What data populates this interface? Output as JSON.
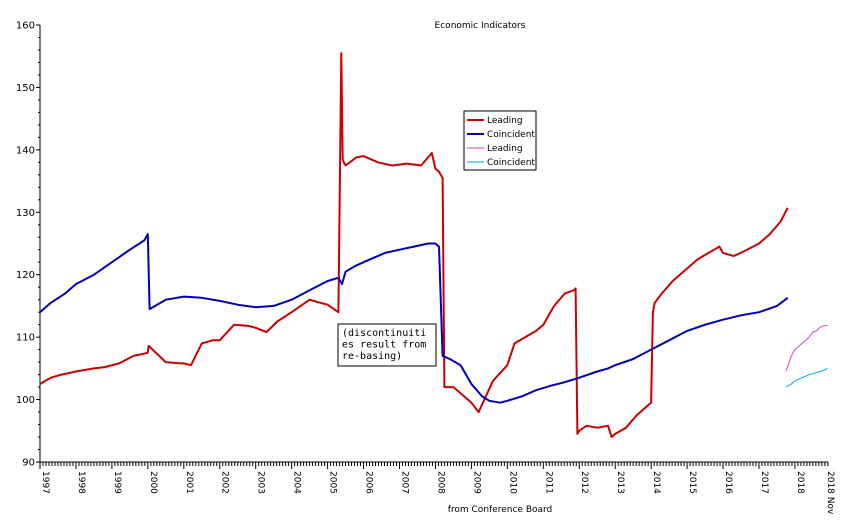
{
  "chart_data": {
    "type": "line",
    "title": "Economic Indicators",
    "xlabel": "from Conference Board",
    "ylabel": "",
    "xlim": [
      1997.0,
      2018.92
    ],
    "ylim": [
      90,
      160
    ],
    "yticks": [
      90,
      100,
      110,
      120,
      130,
      140,
      150,
      160
    ],
    "xticks": [
      "1997",
      "1998",
      "1999",
      "2000",
      "2001",
      "2002",
      "2003",
      "2004",
      "2005",
      "2006",
      "2007",
      "2008",
      "2009",
      "2010",
      "2011",
      "2012",
      "2013",
      "2014",
      "2015",
      "2016",
      "2017",
      "2018",
      "2018 Nov"
    ],
    "annotation": [
      "(discontinuiti",
      "es result from",
      "re-basing)"
    ],
    "legend": {
      "placement": "center-right",
      "entries": [
        "Leading",
        "Coincident",
        "Leading",
        "Coincident"
      ]
    },
    "series": [
      {
        "name": "Leading",
        "color": "#cc0000",
        "x": [
          1997.0,
          1997.3,
          1997.6,
          1998.0,
          1998.5,
          1998.8,
          1999.2,
          1999.6,
          2000.0,
          2000.02,
          2000.5,
          2000.9,
          2001.0,
          2001.2,
          2001.5,
          2001.8,
          2002.0,
          2002.4,
          2002.8,
          2003.0,
          2003.3,
          2003.6,
          2004.0,
          2004.5,
          2004.8,
          2005.0,
          2005.3,
          2005.38,
          2005.42,
          2005.45,
          2005.5,
          2005.8,
          2006.0,
          2006.4,
          2006.8,
          2007.2,
          2007.6,
          2007.9,
          2008.0,
          2008.1,
          2008.2,
          2008.25,
          2008.3,
          2008.5,
          2008.8,
          2009.0,
          2009.2,
          2009.4,
          2009.6,
          2010.0,
          2010.2,
          2010.5,
          2010.8,
          2011.0,
          2011.3,
          2011.6,
          2011.85,
          2011.9,
          2011.95,
          2012.0,
          2012.2,
          2012.5,
          2012.8,
          2012.9,
          2013.0,
          2013.3,
          2013.6,
          2013.9,
          2014.0,
          2014.05,
          2014.1,
          2014.3,
          2014.6,
          2015.0,
          2015.3,
          2015.6,
          2015.9,
          2016.0,
          2016.3,
          2016.6,
          2017.0,
          2017.3,
          2017.6,
          2017.8
        ],
        "y": [
          102.5,
          103.5,
          104.0,
          104.5,
          105.0,
          105.2,
          105.8,
          107.0,
          107.5,
          108.6,
          106.0,
          105.8,
          105.8,
          105.5,
          109.0,
          109.5,
          109.5,
          112.0,
          111.8,
          111.5,
          110.8,
          112.5,
          114.0,
          116.0,
          115.5,
          115.2,
          114.0,
          155.5,
          138.5,
          138.0,
          137.5,
          138.8,
          139.0,
          138.0,
          137.5,
          137.8,
          137.5,
          139.5,
          137.0,
          136.5,
          135.5,
          102.0,
          102.0,
          102.0,
          100.5,
          99.5,
          98.0,
          100.5,
          103.0,
          105.5,
          109.0,
          110.0,
          111.0,
          112.0,
          115.0,
          117.0,
          117.5,
          117.8,
          94.5,
          95.0,
          95.8,
          95.5,
          95.8,
          94.0,
          94.5,
          95.5,
          97.5,
          99.0,
          99.5,
          114.0,
          115.5,
          117.0,
          119.0,
          121.0,
          122.5,
          123.5,
          124.5,
          123.5,
          123.0,
          123.8,
          125.0,
          126.5,
          128.5,
          130.7
        ]
      },
      {
        "name": "Coincident",
        "color": "#0000bb",
        "x": [
          1997.0,
          1997.3,
          1997.7,
          1998.0,
          1998.5,
          1999.0,
          1999.5,
          1999.9,
          2000.0,
          2000.05,
          2000.5,
          2001.0,
          2001.5,
          2002.0,
          2002.5,
          2003.0,
          2003.5,
          2004.0,
          2004.5,
          2005.0,
          2005.3,
          2005.4,
          2005.5,
          2005.8,
          2006.2,
          2006.6,
          2007.0,
          2007.4,
          2007.8,
          2008.0,
          2008.1,
          2008.2,
          2008.4,
          2008.7,
          2009.0,
          2009.3,
          2009.5,
          2009.8,
          2010.0,
          2010.4,
          2010.8,
          2011.2,
          2011.6,
          2012.0,
          2012.5,
          2012.8,
          2013.0,
          2013.5,
          2014.0,
          2014.5,
          2015.0,
          2015.5,
          2016.0,
          2016.5,
          2017.0,
          2017.5,
          2017.8
        ],
        "y": [
          114.0,
          115.5,
          117.0,
          118.5,
          120.0,
          122.0,
          124.0,
          125.5,
          126.5,
          114.5,
          116.0,
          116.5,
          116.3,
          115.8,
          115.2,
          114.8,
          115.0,
          116.0,
          117.5,
          119.0,
          119.5,
          118.5,
          120.5,
          121.5,
          122.5,
          123.5,
          124.0,
          124.5,
          125.0,
          125.0,
          124.5,
          107.0,
          106.5,
          105.5,
          102.5,
          100.5,
          99.8,
          99.5,
          99.8,
          100.5,
          101.5,
          102.2,
          102.8,
          103.5,
          104.5,
          105.0,
          105.5,
          106.5,
          108.0,
          109.5,
          111.0,
          112.0,
          112.8,
          113.5,
          114.0,
          115.0,
          116.3
        ]
      },
      {
        "name": "Leading",
        "color": "#cc44cc",
        "x": [
          2017.75,
          2017.9,
          2018.0,
          2018.2,
          2018.4,
          2018.5,
          2018.6,
          2018.7,
          2018.8,
          2018.9
        ],
        "y": [
          104.5,
          107.0,
          108.0,
          109.0,
          110.0,
          110.8,
          111.0,
          111.6,
          111.8,
          111.9
        ]
      },
      {
        "name": "Coincident",
        "color": "#00aacc",
        "x": [
          2017.75,
          2017.9,
          2018.0,
          2018.2,
          2018.4,
          2018.6,
          2018.75,
          2018.9
        ],
        "y": [
          102.0,
          102.5,
          103.0,
          103.5,
          104.0,
          104.3,
          104.6,
          105.0
        ]
      }
    ]
  }
}
